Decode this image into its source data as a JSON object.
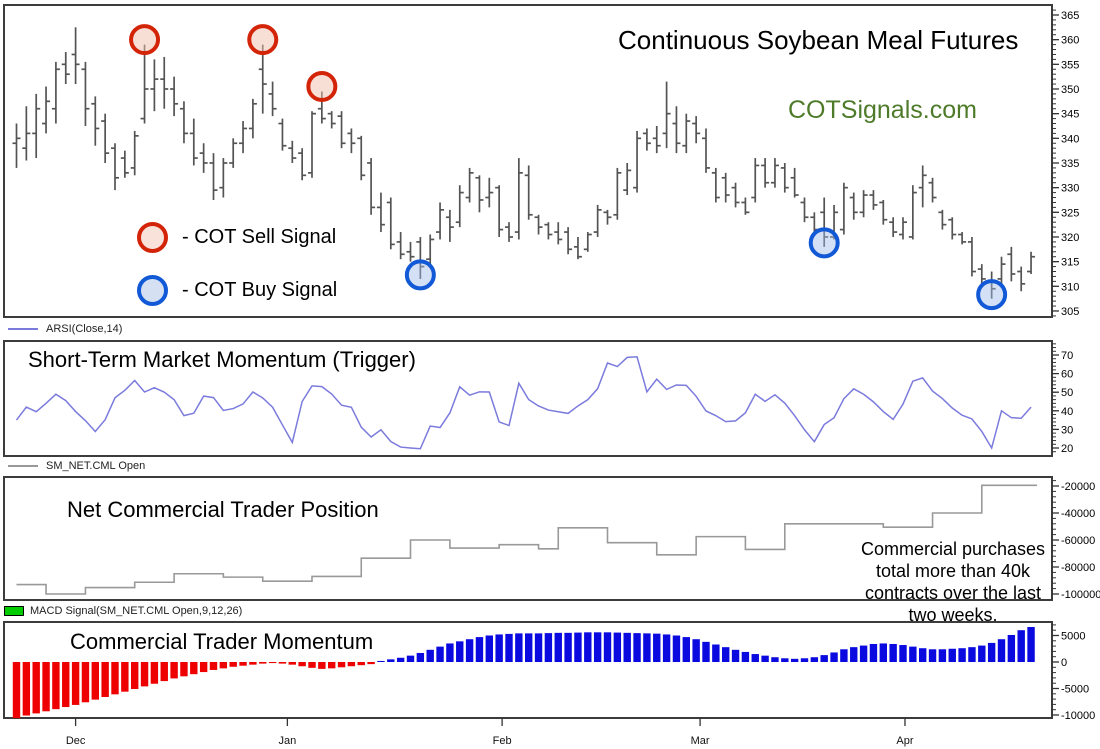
{
  "chart_data": [
    {
      "type": "ohlc",
      "name": "price",
      "title": "Continuous Soybean Meal Futures",
      "watermark": "COTSignals.com",
      "ylim": [
        302.9,
        367.0
      ],
      "yticks": [
        305,
        310,
        315,
        320,
        325,
        330,
        335,
        340,
        345,
        350,
        355,
        360,
        365
      ],
      "legend": {
        "sell": "- COT Sell Signal",
        "buy": "- COT Buy Signal"
      },
      "signals": {
        "sell": [
          13,
          25,
          31
        ],
        "buy": [
          41,
          82,
          99
        ]
      },
      "bars": [
        [
          339,
          343,
          334,
          340
        ],
        [
          338,
          346.5,
          335.5,
          341
        ],
        [
          341,
          349,
          336,
          346
        ],
        [
          343,
          350.5,
          341,
          347.5
        ],
        [
          346,
          355.5,
          343,
          354
        ],
        [
          355,
          357.5,
          351,
          353
        ],
        [
          357,
          362.5,
          351,
          355
        ],
        [
          354,
          355.5,
          342.5,
          346
        ],
        [
          347,
          348.5,
          338.5,
          342
        ],
        [
          343.5,
          345,
          335,
          337
        ],
        [
          338,
          339,
          329.5,
          332
        ],
        [
          336,
          337.5,
          332,
          333
        ],
        [
          334,
          341.5,
          332.5,
          340.5
        ],
        [
          344,
          359,
          343,
          350
        ],
        [
          350,
          356,
          345.5,
          352
        ],
        [
          352,
          356.5,
          346,
          350
        ],
        [
          350,
          352.5,
          344.5,
          347
        ],
        [
          346,
          347.5,
          339,
          341
        ],
        [
          341,
          344,
          334.5,
          336
        ],
        [
          337,
          339,
          333,
          335
        ],
        [
          335,
          337,
          327.5,
          329.5
        ],
        [
          330,
          336,
          328,
          335
        ],
        [
          335,
          340,
          334,
          339
        ],
        [
          339,
          343.5,
          337,
          342
        ],
        [
          342,
          348,
          340,
          347
        ],
        [
          354,
          359,
          345,
          351
        ],
        [
          349,
          351.5,
          344.5,
          346
        ],
        [
          343,
          344,
          337.5,
          338.5
        ],
        [
          338,
          339.5,
          335,
          336
        ],
        [
          337,
          338,
          331.5,
          332.5
        ],
        [
          333,
          345.5,
          332,
          345
        ],
        [
          346,
          349.5,
          343,
          344
        ],
        [
          345,
          345.5,
          342,
          343
        ],
        [
          344.5,
          345.5,
          338,
          339
        ],
        [
          341,
          342,
          337,
          339
        ],
        [
          340,
          340.5,
          331.5,
          332.5
        ],
        [
          335,
          336,
          324.5,
          326
        ],
        [
          326,
          329,
          321,
          322.5
        ],
        [
          327,
          328,
          317.5,
          318.5
        ],
        [
          319,
          321,
          315.5,
          316.5
        ],
        [
          317,
          319,
          315,
          316
        ],
        [
          319,
          320,
          311.5,
          314
        ],
        [
          315.5,
          320.5,
          314.5,
          319.5
        ],
        [
          321,
          327,
          319.5,
          325.5
        ],
        [
          324,
          325.5,
          319,
          322
        ],
        [
          323,
          330.5,
          322,
          329
        ],
        [
          328,
          334,
          327,
          333
        ],
        [
          332,
          332.5,
          325,
          327.5
        ],
        [
          328,
          332,
          326,
          329
        ],
        [
          330,
          330.5,
          320,
          321.5
        ],
        [
          322,
          323,
          319,
          320
        ],
        [
          321,
          336,
          319.5,
          333
        ],
        [
          332.5,
          334.5,
          323.5,
          324.5
        ],
        [
          324,
          324.5,
          320.5,
          322
        ],
        [
          322.5,
          323,
          319.5,
          320.5
        ],
        [
          321,
          323,
          318.5,
          319.5
        ],
        [
          321,
          322,
          316.5,
          317.5
        ],
        [
          318,
          320,
          315.5,
          316
        ],
        [
          317.5,
          321,
          317,
          320.5
        ],
        [
          321,
          326.5,
          320,
          325.5
        ],
        [
          325,
          325.5,
          322.5,
          324
        ],
        [
          324.5,
          334,
          323.5,
          333
        ],
        [
          329.5,
          335,
          328.5,
          333.5
        ],
        [
          330,
          341.5,
          329,
          340
        ],
        [
          341,
          342,
          337.5,
          339
        ],
        [
          340,
          342.5,
          337,
          338.5
        ],
        [
          341,
          351.5,
          338,
          345
        ],
        [
          343,
          346.5,
          337,
          339
        ],
        [
          338.5,
          345,
          337,
          343.5
        ],
        [
          343,
          344.5,
          339,
          341
        ],
        [
          340,
          342,
          333,
          334
        ],
        [
          333,
          334,
          327,
          328
        ],
        [
          332,
          333,
          327,
          328.5
        ],
        [
          330,
          331,
          326,
          327
        ],
        [
          327,
          328,
          324.5,
          325
        ],
        [
          328,
          336,
          327,
          334.5
        ],
        [
          334.5,
          336,
          330,
          331
        ],
        [
          331,
          336,
          330,
          334.5
        ],
        [
          334,
          335,
          329,
          330
        ],
        [
          332,
          334,
          328,
          328.5
        ],
        [
          327,
          328,
          323,
          324
        ],
        [
          324,
          325,
          321,
          321.5
        ],
        [
          325,
          328,
          318,
          320
        ],
        [
          320,
          326.5,
          319.5,
          325
        ],
        [
          321.5,
          331,
          320.5,
          330
        ],
        [
          328,
          329,
          323.5,
          325
        ],
        [
          325,
          329.5,
          324,
          328.5
        ],
        [
          328.5,
          329.5,
          325.5,
          326.5
        ],
        [
          327,
          327.5,
          322.5,
          323.5
        ],
        [
          323,
          324,
          320,
          321
        ],
        [
          320.5,
          324,
          319.5,
          323
        ],
        [
          320,
          330.5,
          319.5,
          329
        ],
        [
          330,
          334.5,
          326,
          332.5
        ],
        [
          331,
          332,
          327,
          328
        ],
        [
          325,
          325.5,
          321.5,
          322.5
        ],
        [
          323.5,
          324,
          319.5,
          320.5
        ],
        [
          320.5,
          321,
          318.5,
          319
        ],
        [
          319,
          320,
          312,
          313
        ],
        [
          313.5,
          314.5,
          310.5,
          311.5
        ],
        [
          311,
          313,
          307.5,
          309.5
        ],
        [
          311.5,
          316,
          310.5,
          314.5
        ],
        [
          316.5,
          318,
          311,
          312.5
        ],
        [
          313,
          314,
          309,
          310.5
        ],
        [
          313,
          317,
          312.5,
          316
        ]
      ]
    },
    {
      "type": "line",
      "name": "momentum",
      "title": "Short-Term Market Momentum (Trigger)",
      "series_label": "ARSI(Close,14)",
      "ylim": [
        15.7,
        77.5
      ],
      "yticks": [
        20,
        30,
        40,
        50,
        60,
        70
      ],
      "values": [
        35,
        42,
        39.5,
        44,
        48.9,
        45.5,
        39.6,
        34.7,
        28.9,
        35.2,
        47,
        51,
        56.3,
        50.1,
        52.4,
        50,
        46,
        37.4,
        38.7,
        47.9,
        47.1,
        40.2,
        41.2,
        43.7,
        50.1,
        46.9,
        41.9,
        32.4,
        23,
        45,
        53.4,
        53,
        49,
        43,
        41.9,
        31.2,
        25.9,
        29.8,
        23.5,
        20.5,
        20,
        19.6,
        31.8,
        31,
        38.9,
        52.9,
        48.4,
        50.2,
        50.1,
        34,
        32.1,
        54.8,
        46,
        42.6,
        40.4,
        39.5,
        38.6,
        42.6,
        46,
        51.9,
        65.7,
        63.8,
        68.7,
        69,
        50.2,
        57,
        51.5,
        53.9,
        53.7,
        47.8,
        39.9,
        37.4,
        34.2,
        34.6,
        38.9,
        48.9,
        45.1,
        48.6,
        44.1,
        37.4,
        29.8,
        23.4,
        32.6,
        36.3,
        46.5,
        51.8,
        48.9,
        44.8,
        39.6,
        35.4,
        43.6,
        55.9,
        57.7,
        50.6,
        46.6,
        41.5,
        37.6,
        35.6,
        28.9,
        20,
        40,
        36.3,
        36,
        42
      ]
    },
    {
      "type": "step",
      "name": "net_position",
      "title": "Net Commercial Trader Position",
      "series_label": "SM_NET.CML Open",
      "ylim": [
        -104400,
        -13300
      ],
      "yticks": [
        -20000,
        -40000,
        -60000,
        -80000,
        -100000
      ],
      "step_bars": [
        0,
        3,
        7,
        12,
        16,
        21,
        25,
        30,
        35,
        40,
        44,
        49,
        53,
        55,
        60,
        65,
        69,
        74,
        78,
        88,
        93,
        98
      ],
      "step_values": [
        -93000,
        -100000,
        -95200,
        -91300,
        -85000,
        -87500,
        -90500,
        -87000,
        -73500,
        -60000,
        -66000,
        -63500,
        -66500,
        -51000,
        -62000,
        -71000,
        -57500,
        -67000,
        -48000,
        -50500,
        -40000,
        -19500
      ],
      "annotation": [
        "Commercial purchases",
        "total more than 40k",
        "contracts over the last",
        "two weeks."
      ]
    },
    {
      "type": "bar",
      "name": "macd",
      "title": "Commercial Trader Momentum",
      "series_label": "MACD Signal(SM_NET.CML Open,9,12,26)",
      "ylim": [
        -10570,
        7550
      ],
      "yticks": [
        5000,
        0,
        -5000,
        -10000
      ],
      "values": [
        -10600,
        -10100,
        -9700,
        -9300,
        -8900,
        -8500,
        -8100,
        -7600,
        -7100,
        -6600,
        -6100,
        -5600,
        -5100,
        -4600,
        -4100,
        -3600,
        -3100,
        -2700,
        -2300,
        -1900,
        -1500,
        -1200,
        -900,
        -700,
        -500,
        -300,
        -200,
        -300,
        -500,
        -800,
        -1100,
        -1300,
        -1200,
        -1000,
        -800,
        -600,
        -400,
        200,
        500,
        800,
        1200,
        1700,
        2300,
        2900,
        3500,
        3900,
        4300,
        4700,
        5000,
        5200,
        5300,
        5400,
        5400,
        5400,
        5450,
        5500,
        5500,
        5550,
        5600,
        5600,
        5600,
        5550,
        5500,
        5450,
        5400,
        5350,
        5200,
        5000,
        4700,
        4300,
        3800,
        3300,
        2800,
        2300,
        1900,
        1500,
        1200,
        900,
        700,
        600,
        700,
        900,
        1300,
        1800,
        2400,
        2800,
        3100,
        3400,
        3500,
        3400,
        3200,
        2900,
        2600,
        2400,
        2400,
        2500,
        2600,
        2800,
        3100,
        3600,
        4300,
        5100,
        6000,
        6600
      ]
    }
  ],
  "x_axis": {
    "months": [
      {
        "label": "Dec",
        "bar": 6
      },
      {
        "label": "Jan",
        "bar": 27.5
      },
      {
        "label": "Feb",
        "bar": 49.3
      },
      {
        "label": "Mar",
        "bar": 69.4
      },
      {
        "label": "Apr",
        "bar": 90.2
      }
    ]
  },
  "colors": {
    "bar": "#545454",
    "arsi_line": "#7b7bdd",
    "net_line": "#999999",
    "macd_pos": "#0a0ae0",
    "macd_neg": "#ee0000",
    "sell": "#d42408",
    "buy": "#1159d6",
    "watermark": "#4e7b2a",
    "legend_swatch": "#00cc00"
  }
}
